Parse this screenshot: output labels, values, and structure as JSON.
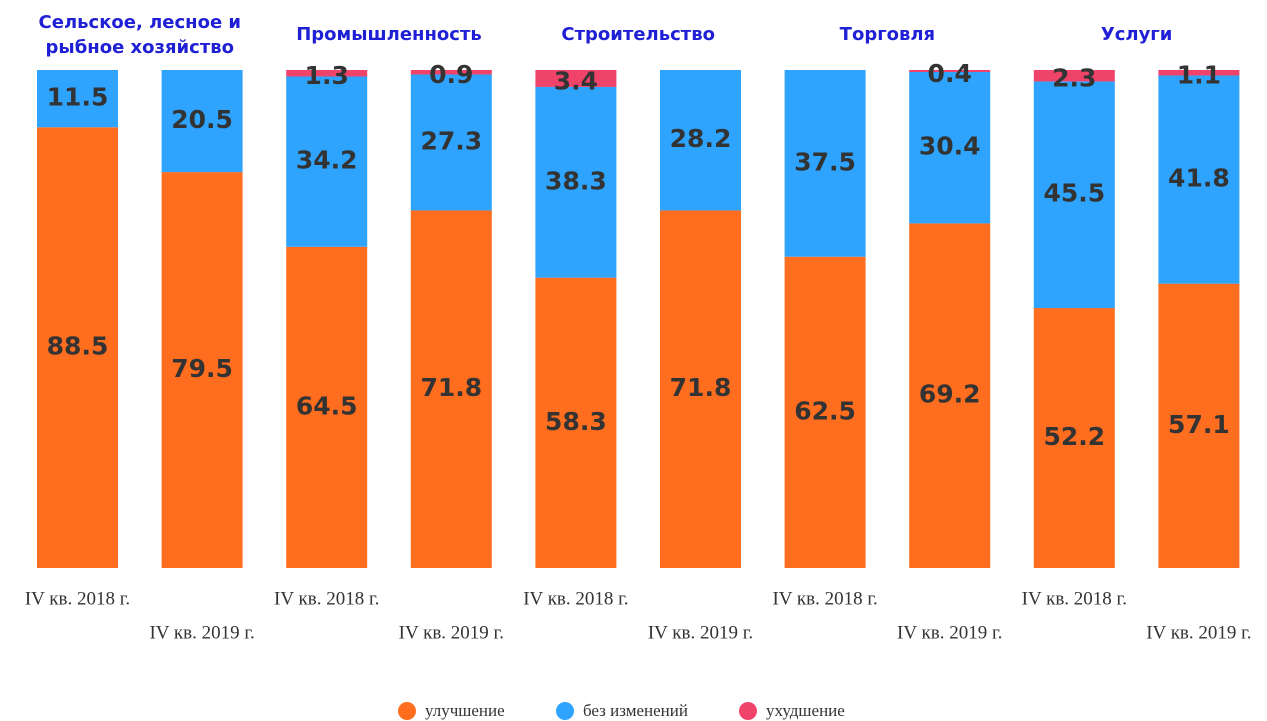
{
  "chart_data": {
    "type": "stacked_bar",
    "groups": [
      "Сельское, лесное и рыбное хозяйство",
      "Промышленность",
      "Строительство",
      "Торговля",
      "Услуги"
    ],
    "categories": [
      "IV кв. 2018 г.",
      "IV кв. 2019 г.",
      "IV кв. 2018 г.",
      "IV кв. 2019 г.",
      "IV кв. 2018 г.",
      "IV кв. 2019 г.",
      "IV кв. 2018 г.",
      "IV кв. 2019 г.",
      "IV кв. 2018 г.",
      "IV кв. 2019 г."
    ],
    "series": [
      {
        "name": "улучшение",
        "color": "#ff6d1f",
        "values": [
          88.5,
          79.5,
          64.5,
          71.8,
          58.3,
          71.8,
          62.5,
          69.2,
          52.2,
          57.1
        ]
      },
      {
        "name": "без изменений",
        "color": "#2ea4ff",
        "values": [
          11.5,
          20.5,
          34.2,
          27.3,
          38.3,
          28.2,
          37.5,
          30.4,
          45.5,
          41.8
        ]
      },
      {
        "name": "ухудшение",
        "color": "#f0436a",
        "values": [
          null,
          null,
          1.3,
          0.9,
          3.4,
          null,
          null,
          0.4,
          2.3,
          1.1
        ]
      }
    ],
    "ylim": [
      0,
      100
    ]
  }
}
